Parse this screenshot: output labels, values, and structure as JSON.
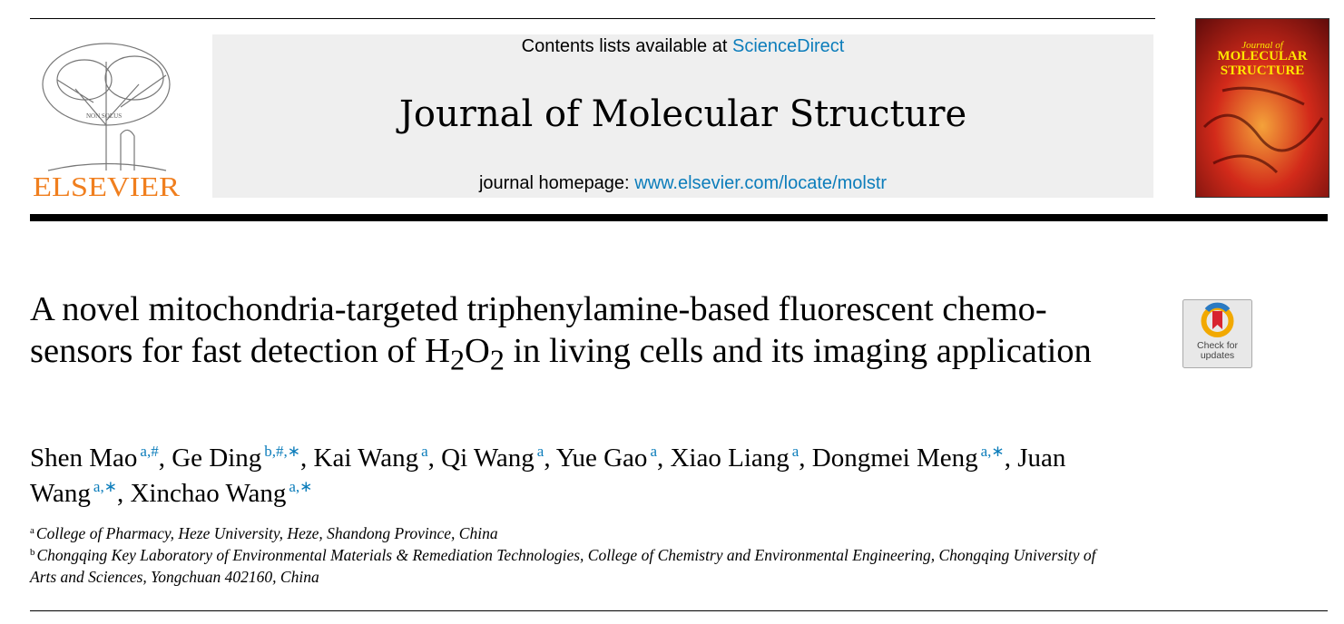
{
  "header": {
    "contents_prefix": "Contents lists available at",
    "contents_link": "ScienceDirect",
    "journal": "Journal of Molecular Structure",
    "homepage_prefix": "journal homepage:",
    "homepage_link": "www.elsevier.com/locate/molstr",
    "publisher": "ELSEVIER",
    "motto": "NON SOLUS",
    "cover_small": "Journal of",
    "cover_title": "MOLECULAR STRUCTURE",
    "badge_line1": "Check for",
    "badge_line2": "updates"
  },
  "article": {
    "title_segments": [
      "A novel mitochondria-targeted triphenylamine-based fluorescent chemo-sensors for fast detection of H",
      "2",
      "O",
      "2",
      " in living cells and its imaging application"
    ],
    "author_separator": ",",
    "authors": [
      {
        "name": "Shen Mao",
        "marks": "a,#"
      },
      {
        "name": "Ge Ding",
        "marks": "b,#,∗"
      },
      {
        "name": "Kai Wang",
        "marks": "a"
      },
      {
        "name": "Qi Wang",
        "marks": "a"
      },
      {
        "name": "Yue Gao",
        "marks": "a"
      },
      {
        "name": "Xiao Liang",
        "marks": "a"
      },
      {
        "name": "Dongmei Meng",
        "marks": "a,∗"
      },
      {
        "name": "Juan Wang",
        "marks": "a,∗"
      },
      {
        "name": "Xinchao Wang",
        "marks": "a,∗"
      }
    ],
    "affiliations": [
      {
        "label": "a",
        "text": "College of Pharmacy, Heze University, Heze, Shandong Province, China"
      },
      {
        "label": "b",
        "text": "Chongqing Key Laboratory of Environmental Materials & Remediation Technologies, College of Chemistry and Environmental Engineering, Chongqing University of Arts and Sciences, Yongchuan 402160, China"
      }
    ]
  }
}
